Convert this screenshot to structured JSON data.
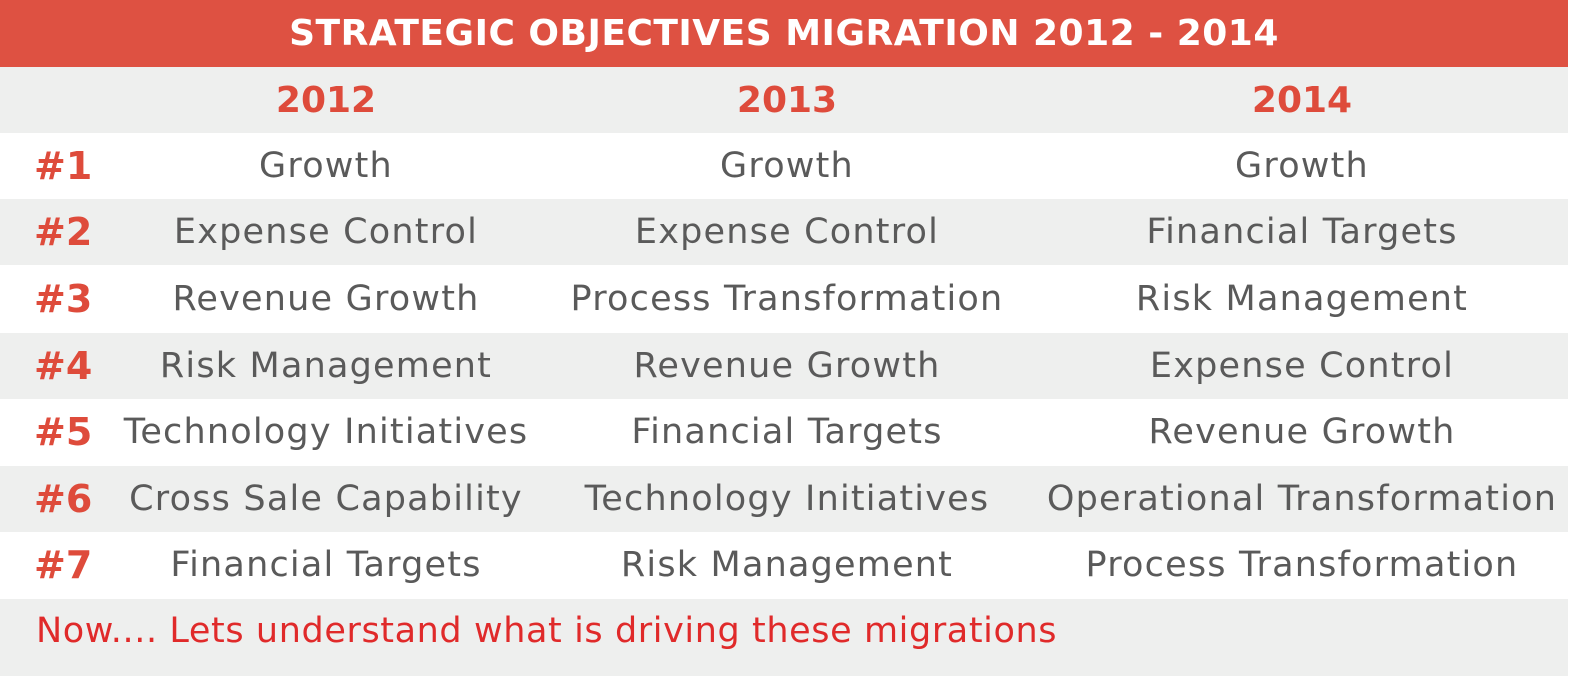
{
  "chart_data": {
    "type": "table",
    "title": "STRATEGIC OBJECTIVES MIGRATION 2012 - 2014",
    "columns": [
      "2012",
      "2013",
      "2014"
    ],
    "rows": [
      {
        "rank": "#1",
        "values": [
          "Growth",
          "Growth",
          "Growth"
        ]
      },
      {
        "rank": "#2",
        "values": [
          "Expense Control",
          "Expense Control",
          "Financial Targets"
        ]
      },
      {
        "rank": "#3",
        "values": [
          "Revenue Growth",
          "Process Transformation",
          "Risk Management"
        ]
      },
      {
        "rank": "#4",
        "values": [
          "Risk Management",
          "Revenue Growth",
          "Expense Control"
        ]
      },
      {
        "rank": "#5",
        "values": [
          "Technology Initiatives",
          "Financial Targets",
          "Revenue Growth"
        ]
      },
      {
        "rank": "#6",
        "values": [
          "Cross Sale Capability",
          "Technology Initiatives",
          "Operational Transformation"
        ]
      },
      {
        "rank": "#7",
        "values": [
          "Financial Targets",
          "Risk Management",
          "Process Transformation"
        ]
      }
    ],
    "footer": "Now.... Lets understand what is driving these migrations"
  },
  "colors": {
    "accent": "#de5142",
    "row_shade": "#eeefee",
    "text": "#5a5a5a",
    "footer_text": "#e02a2a"
  }
}
